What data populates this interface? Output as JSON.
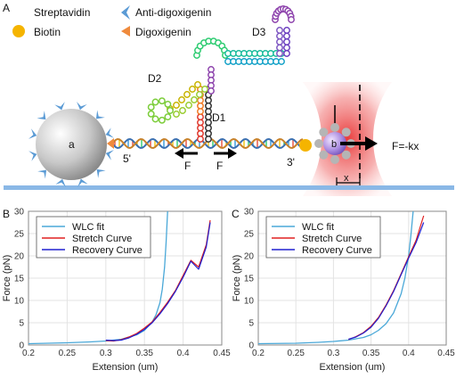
{
  "panel_labels": {
    "a": "A",
    "b": "B",
    "c": "C"
  },
  "diagram": {
    "legend": {
      "streptavidin": "Streptavidin",
      "anti_digoxigenin": "Anti-digoxigenin",
      "biotin": "Biotin",
      "digoxigenin": "Digoxigenin"
    },
    "labels": {
      "d1": "D1",
      "d2": "D2",
      "d3": "D3",
      "bead_a": "a",
      "bead_b": "b",
      "five_prime": "5'",
      "three_prime": "3'",
      "force_left": "F",
      "force_right": "F",
      "trap_force": "F=-kx",
      "x": "x"
    },
    "colors": {
      "streptavidin": "#b5b5b5",
      "anti_digoxigenin": "#5b9bd5",
      "biotin": "#f5b400",
      "digoxigenin": "#ef8a3c",
      "surface": "#8ab8e6",
      "trap": "#e03030"
    }
  },
  "chart_data": [
    {
      "type": "line",
      "panel": "B",
      "xlabel": "Extension (um)",
      "ylabel": "Force (pN)",
      "xlim": [
        0.2,
        0.45
      ],
      "ylim": [
        0,
        30
      ],
      "xticks": [
        0.2,
        0.25,
        0.3,
        0.35,
        0.4,
        0.45
      ],
      "yticks": [
        0,
        5,
        10,
        15,
        20,
        25,
        30
      ],
      "grid": true,
      "legend_placement": "top-left",
      "series": [
        {
          "name": "WLC fit",
          "color": "#4aa8d8",
          "x": [
            0.2,
            0.25,
            0.28,
            0.3,
            0.32,
            0.34,
            0.35,
            0.36,
            0.365,
            0.37,
            0.373,
            0.376,
            0.378,
            0.38
          ],
          "y": [
            0.3,
            0.5,
            0.7,
            0.9,
            1.3,
            2.3,
            3.3,
            5.2,
            6.8,
            9.5,
            12.5,
            17.5,
            23.0,
            30.0
          ]
        },
        {
          "name": "Stretch Curve",
          "color": "#e02020",
          "x": [
            0.3,
            0.31,
            0.32,
            0.33,
            0.34,
            0.35,
            0.36,
            0.37,
            0.38,
            0.39,
            0.4,
            0.41,
            0.42,
            0.43,
            0.435
          ],
          "y": [
            1.0,
            0.9,
            1.2,
            1.8,
            2.6,
            3.8,
            5.2,
            7.3,
            9.6,
            12.2,
            15.6,
            19.0,
            17.5,
            22.5,
            28.0
          ]
        },
        {
          "name": "Recovery Curve",
          "color": "#2020d0",
          "x": [
            0.3,
            0.31,
            0.32,
            0.33,
            0.34,
            0.35,
            0.36,
            0.37,
            0.38,
            0.39,
            0.4,
            0.41,
            0.42,
            0.43,
            0.435
          ],
          "y": [
            1.1,
            1.0,
            1.1,
            1.6,
            2.4,
            3.5,
            5.0,
            7.0,
            9.3,
            12.0,
            15.2,
            18.8,
            17.0,
            22.0,
            27.5
          ]
        }
      ]
    },
    {
      "type": "line",
      "panel": "C",
      "xlabel": "Extension (um)",
      "ylabel": "Force (pN)",
      "xlim": [
        0.2,
        0.45
      ],
      "ylim": [
        0,
        30
      ],
      "xticks": [
        0.2,
        0.25,
        0.3,
        0.35,
        0.4,
        0.45
      ],
      "yticks": [
        0,
        5,
        10,
        15,
        20,
        25,
        30
      ],
      "grid": true,
      "legend_placement": "top-left",
      "series": [
        {
          "name": "WLC fit",
          "color": "#4aa8d8",
          "x": [
            0.2,
            0.25,
            0.28,
            0.3,
            0.32,
            0.34,
            0.35,
            0.36,
            0.37,
            0.38,
            0.39,
            0.395,
            0.4,
            0.403,
            0.406
          ],
          "y": [
            0.3,
            0.4,
            0.6,
            0.8,
            1.1,
            1.7,
            2.3,
            3.3,
            4.8,
            7.2,
            11.5,
            15.0,
            20.0,
            24.5,
            30.0
          ]
        },
        {
          "name": "Stretch Curve",
          "color": "#e02020",
          "x": [
            0.32,
            0.33,
            0.34,
            0.35,
            0.36,
            0.37,
            0.38,
            0.39,
            0.4,
            0.41,
            0.42
          ],
          "y": [
            1.2,
            1.9,
            2.8,
            4.2,
            6.2,
            9.0,
            12.2,
            16.0,
            19.8,
            23.5,
            29.0
          ]
        },
        {
          "name": "Recovery Curve",
          "color": "#2020d0",
          "x": [
            0.32,
            0.33,
            0.34,
            0.35,
            0.36,
            0.37,
            0.38,
            0.39,
            0.4,
            0.41,
            0.42
          ],
          "y": [
            1.3,
            1.8,
            2.7,
            4.0,
            6.0,
            8.8,
            12.0,
            15.8,
            19.5,
            23.0,
            27.5
          ]
        }
      ]
    }
  ]
}
